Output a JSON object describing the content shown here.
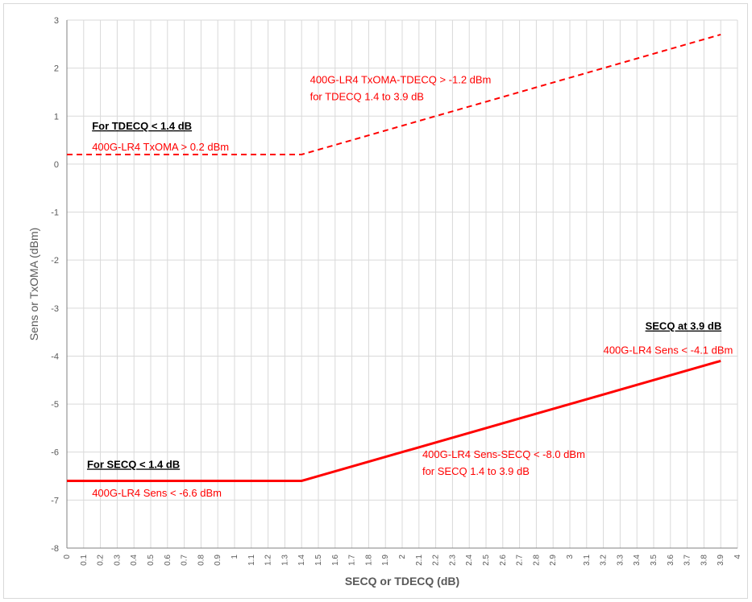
{
  "chart_data": {
    "type": "line",
    "title": "",
    "xlabel": "SECQ or TDECQ (dB)",
    "ylabel": "Sens or TxOMA (dBm)",
    "xlim": [
      0,
      4
    ],
    "ylim": [
      -8,
      3
    ],
    "grid": true,
    "x_ticks": [
      "0",
      "0.1",
      "0.2",
      "0.3",
      "0.4",
      "0.5",
      "0.6",
      "0.7",
      "0.8",
      "0.9",
      "1",
      "1.1",
      "1.2",
      "1.3",
      "1.4",
      "1.5",
      "1.6",
      "1.7",
      "1.8",
      "1.9",
      "2",
      "2.1",
      "2.2",
      "2.3",
      "2.4",
      "2.5",
      "2.6",
      "2.7",
      "2.8",
      "2.9",
      "3",
      "3.1",
      "3.2",
      "3.3",
      "3.4",
      "3.5",
      "3.6",
      "3.7",
      "3.8",
      "3.9",
      "4"
    ],
    "y_ticks": [
      "3",
      "2",
      "1",
      "0",
      "-1",
      "-2",
      "-3",
      "-4",
      "-5",
      "-6",
      "-7",
      "-8"
    ],
    "series": [
      {
        "style": "dashed",
        "color": "#ff0000",
        "points": [
          [
            0,
            0.2
          ],
          [
            1.4,
            0.2
          ],
          [
            3.9,
            2.7
          ]
        ]
      },
      {
        "style": "solid",
        "color": "#ff0000",
        "points": [
          [
            0,
            -6.6
          ],
          [
            1.4,
            -6.6
          ],
          [
            3.9,
            -4.1
          ]
        ]
      }
    ],
    "annotations": [
      {
        "id": "ann-tdecq-low-header",
        "text": "For TDECQ < 1.4 dB",
        "x": 0.15,
        "y": 0.72,
        "color": "#000000",
        "bold": true
      },
      {
        "id": "ann-tdecq-low",
        "text": "400G-LR4 TxOMA > 0.2 dBm",
        "x": 0.15,
        "y": 0.28,
        "color": "#ff0000"
      },
      {
        "id": "ann-tdecq-slope-1",
        "text": "400G-LR4 TxOMA-TDECQ > -1.2 dBm",
        "x": 1.45,
        "y": 1.68,
        "color": "#ff0000"
      },
      {
        "id": "ann-tdecq-slope-2",
        "text": "for TDECQ 1.4 to 3.9 dB",
        "x": 1.45,
        "y": 1.33,
        "color": "#ff0000"
      },
      {
        "id": "ann-secq-high-header",
        "text": "SECQ  at 3.9 dB",
        "x": 3.45,
        "y": -3.45,
        "color": "#000000",
        "bold": true
      },
      {
        "id": "ann-secq-high",
        "text": "400G-LR4 Sens < -4.1 dBm",
        "x": 3.2,
        "y": -3.95,
        "color": "#ff0000"
      },
      {
        "id": "ann-secq-slope-1",
        "text": "400G-LR4 Sens-SECQ < -8.0 dBm",
        "x": 2.12,
        "y": -6.12,
        "color": "#ff0000"
      },
      {
        "id": "ann-secq-slope-2",
        "text": "for SECQ 1.4 to 3.9 dB",
        "x": 2.12,
        "y": -6.47,
        "color": "#ff0000"
      },
      {
        "id": "ann-secq-low-header",
        "text": "For SECQ < 1.4 dB",
        "x": 0.12,
        "y": -6.33,
        "color": "#000000",
        "bold": true
      },
      {
        "id": "ann-secq-low",
        "text": "400G-LR4 Sens < -6.6 dBm",
        "x": 0.15,
        "y": -6.93,
        "color": "#ff0000"
      }
    ]
  }
}
